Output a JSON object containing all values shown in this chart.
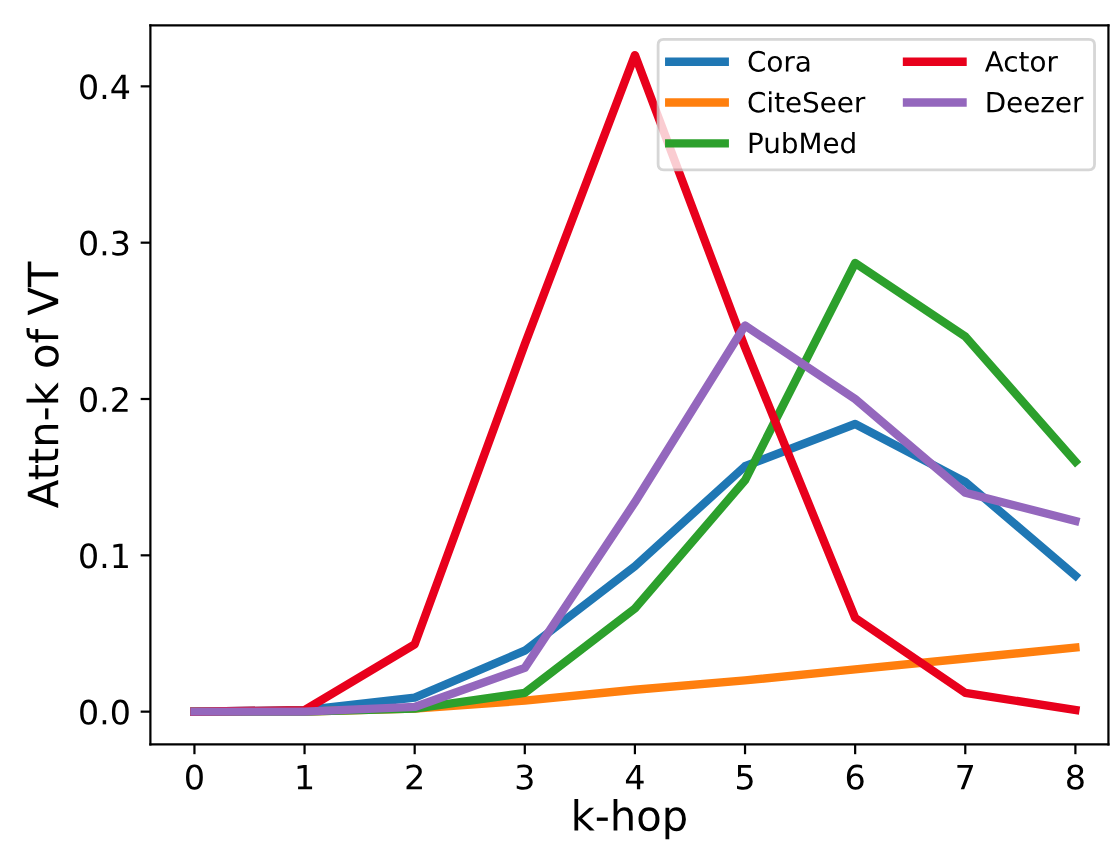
{
  "chart_data": {
    "type": "line",
    "xlabel": "k-hop",
    "ylabel": "Attn-k of VT",
    "x": [
      0,
      1,
      2,
      3,
      4,
      5,
      6,
      7,
      8
    ],
    "series": [
      {
        "name": "Cora",
        "color": "#1f77b4",
        "values": [
          0.0,
          0.001,
          0.009,
          0.039,
          0.093,
          0.157,
          0.184,
          0.147,
          0.087
        ]
      },
      {
        "name": "CiteSeer",
        "color": "#ff7f0e",
        "values": [
          0.0,
          0.0,
          0.002,
          0.007,
          0.014,
          0.02,
          0.027,
          0.034,
          0.041
        ]
      },
      {
        "name": "PubMed",
        "color": "#2ca02c",
        "values": [
          0.0,
          0.0,
          0.002,
          0.012,
          0.066,
          0.148,
          0.287,
          0.24,
          0.16
        ]
      },
      {
        "name": "Actor",
        "color": "#e8001c",
        "values": [
          0.0,
          0.001,
          0.043,
          0.235,
          0.42,
          0.233,
          0.06,
          0.012,
          0.001
        ]
      },
      {
        "name": "Deezer",
        "color": "#9467bd",
        "values": [
          0.0,
          0.0,
          0.003,
          0.028,
          0.134,
          0.247,
          0.2,
          0.14,
          0.122
        ]
      }
    ],
    "xlim": [
      -0.4,
      8.3
    ],
    "ylim": [
      -0.021,
      0.439
    ],
    "xticks": [
      0,
      1,
      2,
      3,
      4,
      5,
      6,
      7,
      8
    ],
    "yticks": [
      {
        "value": 0,
        "label": "0.0"
      },
      {
        "value": 0.1,
        "label": "0.1"
      },
      {
        "value": 0.2,
        "label": "0.2"
      },
      {
        "value": 0.3,
        "label": "0.3"
      },
      {
        "value": 0.4,
        "label": "0.4"
      }
    ],
    "grid": false,
    "legend": "top right",
    "marker": "none",
    "line_style": "solid"
  }
}
